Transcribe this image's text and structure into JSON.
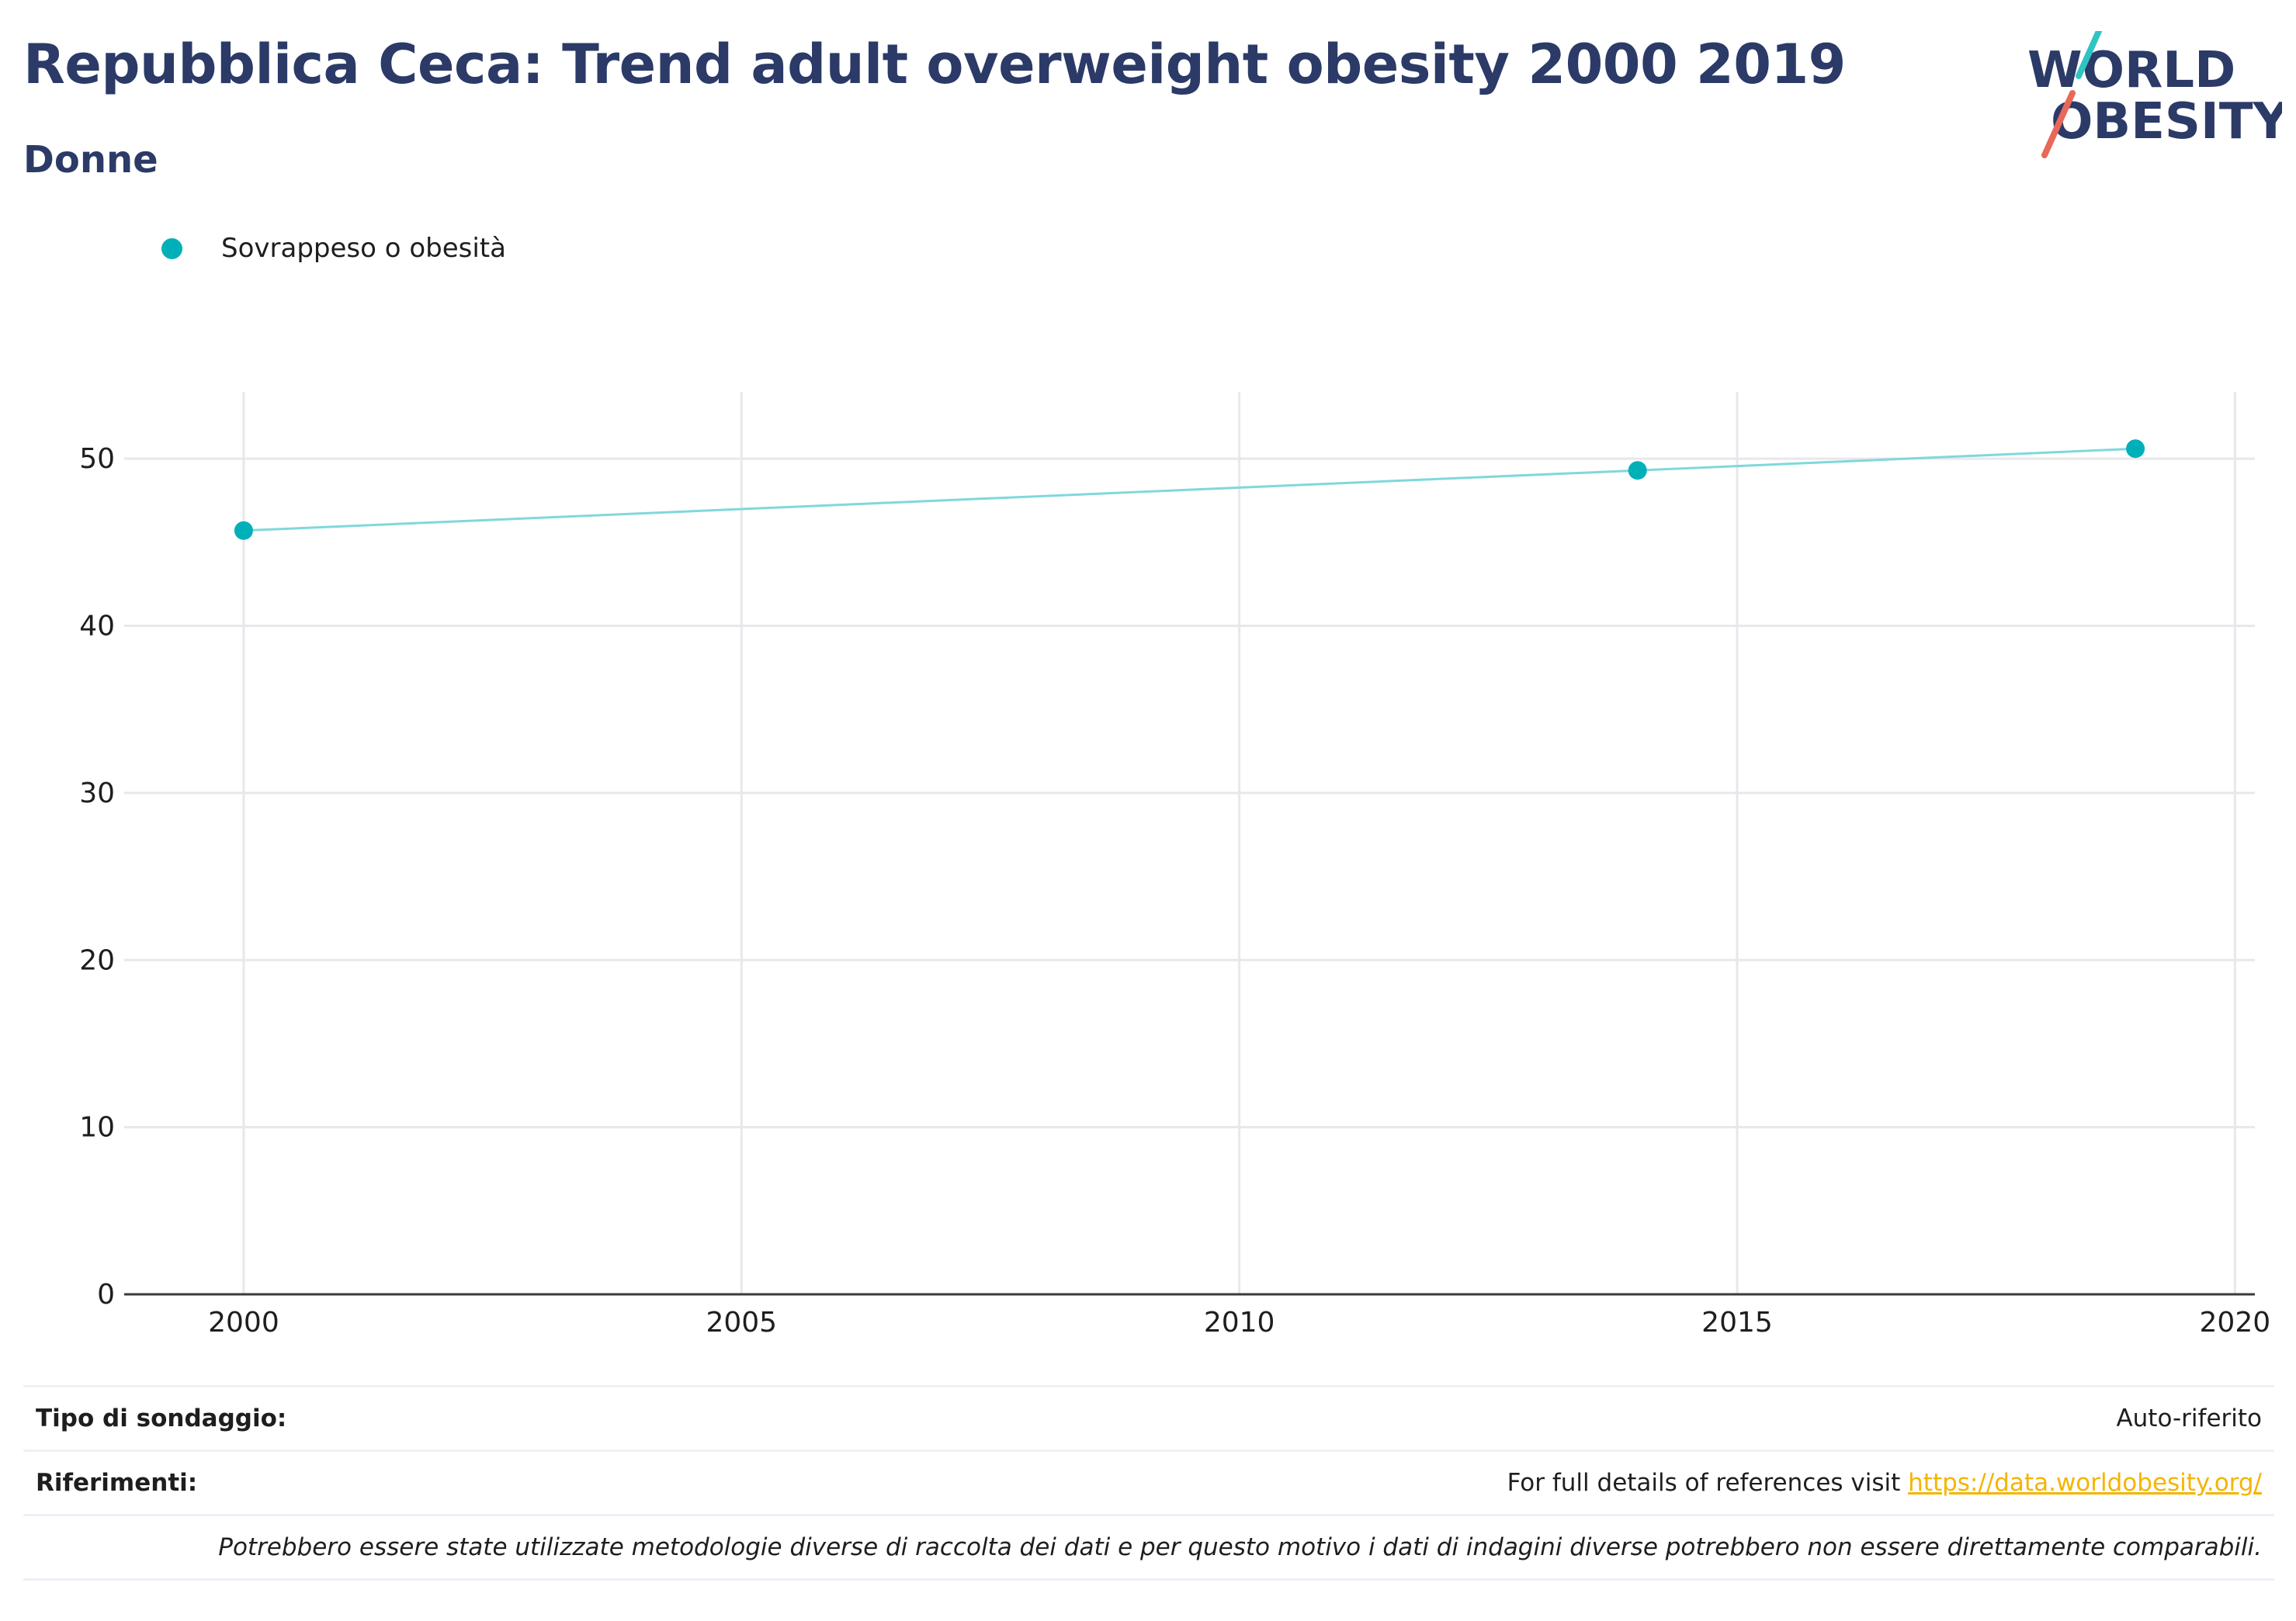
{
  "header": {
    "title": "Repubblica Ceca: Trend adult overweight obesity 2000 2019",
    "subtitle": "Donne"
  },
  "logo": {
    "line1": "WORLD",
    "line2": "OBESITY"
  },
  "colors": {
    "series": "#00b0b9",
    "title": "#2b3a67",
    "link": "#f5b400",
    "logo_teal": "#2fc4c2",
    "logo_red": "#e8685a"
  },
  "chart_data": {
    "type": "line",
    "series": [
      {
        "name": "Sovrappeso o obesità",
        "x": [
          2000,
          2014,
          2019
        ],
        "values": [
          45.7,
          49.3,
          50.6
        ]
      }
    ],
    "xlim": [
      1998.8,
      2020.2
    ],
    "ylim": [
      0,
      54
    ],
    "xticks": [
      2000,
      2005,
      2010,
      2015,
      2020
    ],
    "yticks": [
      0,
      10,
      20,
      30,
      40,
      50
    ],
    "xlabel": "",
    "ylabel": "",
    "grid": true,
    "legend_position": "top-left"
  },
  "footer": {
    "survey_label": "Tipo di sondaggio:",
    "survey_value": "Auto-riferito",
    "refs_label": "Riferimenti:",
    "refs_text": "For full details of references visit",
    "refs_link": "https://data.worldobesity.org/",
    "note": "Potrebbero essere state utilizzate metodologie diverse di raccolta dei dati e per questo motivo i dati di indagini diverse potrebbero non essere direttamente comparabili."
  }
}
